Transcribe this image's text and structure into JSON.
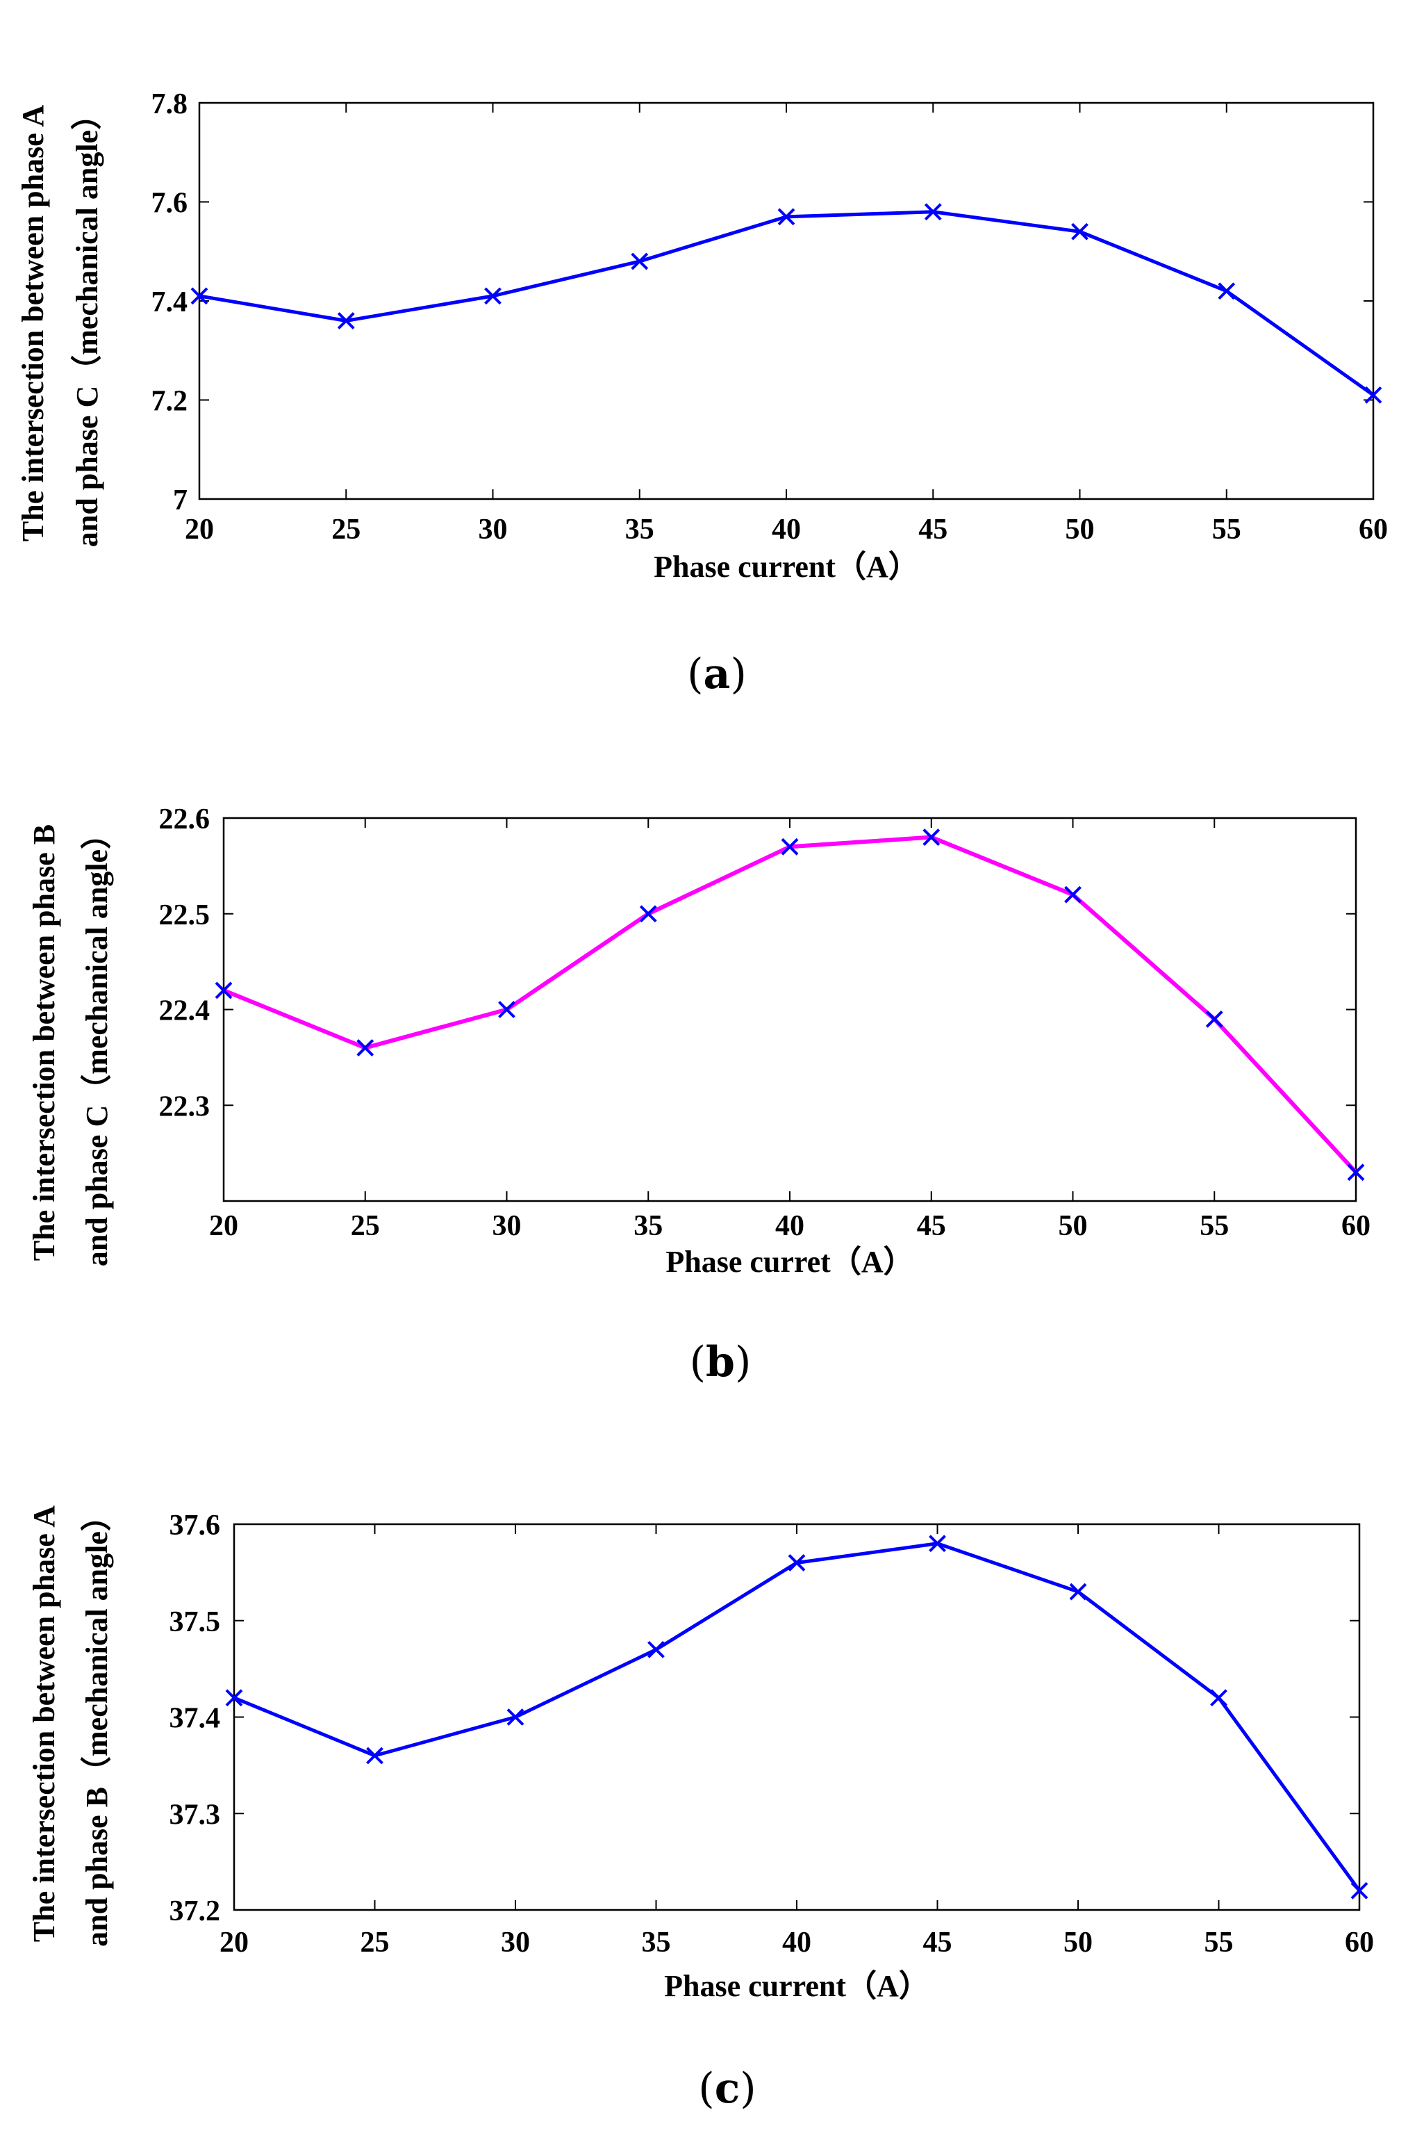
{
  "chart_data": [
    {
      "type": "line",
      "panel_label": "a",
      "xlabel": "Phase current（A）",
      "ylabel_lines": [
        "The intersection between phase A",
        "and phase C（mechanical angle）"
      ],
      "x": [
        20,
        25,
        30,
        35,
        40,
        45,
        50,
        55,
        60
      ],
      "x_ticks": [
        "20",
        "25",
        "30",
        "35",
        "40",
        "45",
        "50",
        "55",
        "60"
      ],
      "xlim": [
        20,
        60
      ],
      "y_ticks": [
        "7",
        "7.2",
        "7.4",
        "7.6",
        "7.8"
      ],
      "ylim": [
        7,
        7.8
      ],
      "grid": false,
      "series": [
        {
          "name": "intersection A-C",
          "values": [
            7.41,
            7.36,
            7.41,
            7.48,
            7.57,
            7.58,
            7.54,
            7.42,
            7.21
          ],
          "color": "#0000ff",
          "marker": "x"
        }
      ]
    },
    {
      "type": "line",
      "panel_label": "b",
      "xlabel": "Phase curret（A）",
      "ylabel_lines": [
        "The intersection between phase B",
        "and phase C（mechanical angle）"
      ],
      "x": [
        20,
        25,
        30,
        35,
        40,
        45,
        50,
        55,
        60
      ],
      "x_ticks": [
        "20",
        "25",
        "30",
        "35",
        "40",
        "45",
        "50",
        "55",
        "60"
      ],
      "xlim": [
        20,
        60
      ],
      "y_ticks": [
        "22.3",
        "22.4",
        "22.5",
        "22.6"
      ],
      "ylim": [
        22.2,
        22.6
      ],
      "grid": false,
      "series": [
        {
          "name": "intersection B-C",
          "values": [
            22.42,
            22.36,
            22.4,
            22.5,
            22.57,
            22.58,
            22.52,
            22.39,
            22.23
          ],
          "color": "#ff00ff",
          "marker_color": "#0000ff",
          "marker": "x"
        }
      ]
    },
    {
      "type": "line",
      "panel_label": "c",
      "xlabel": "Phase current（A）",
      "ylabel_lines": [
        "The intersection between phase A",
        "and phase B（mechanical angle）"
      ],
      "x": [
        20,
        25,
        30,
        35,
        40,
        45,
        50,
        55,
        60
      ],
      "x_ticks": [
        "20",
        "25",
        "30",
        "35",
        "40",
        "45",
        "50",
        "55",
        "60"
      ],
      "xlim": [
        20,
        60
      ],
      "y_ticks": [
        "37.2",
        "37.3",
        "37.4",
        "37.5",
        "37.6"
      ],
      "ylim": [
        37.2,
        37.6
      ],
      "grid": false,
      "series": [
        {
          "name": "intersection A-B",
          "values": [
            37.42,
            37.36,
            37.4,
            37.47,
            37.56,
            37.58,
            37.53,
            37.42,
            37.22
          ],
          "color": "#0000ff",
          "marker": "x"
        }
      ]
    }
  ]
}
